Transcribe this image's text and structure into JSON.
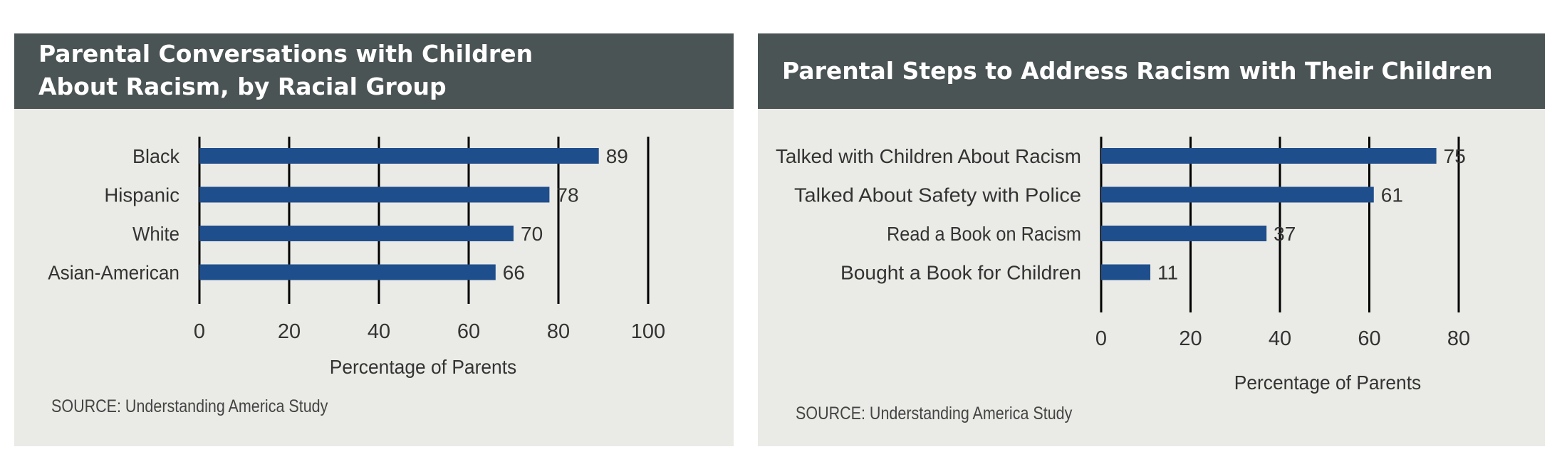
{
  "colors": {
    "bar": "#1f4e8c",
    "header": "#4b5455",
    "panel": "#eaeae6",
    "grid": "#000000",
    "text": "#333333"
  },
  "chart_data": [
    {
      "type": "bar",
      "orientation": "horizontal",
      "title": "Parental Conversations with Children\nAbout Racism, by Racial Group",
      "categories": [
        "Black",
        "Hispanic",
        "White",
        "Asian-American"
      ],
      "values": [
        89,
        78,
        70,
        66
      ],
      "data_labels": [
        "89",
        "78",
        "70",
        "66"
      ],
      "xlabel": "Percentage of Parents",
      "xlim": [
        0,
        100
      ],
      "xticks": [
        0,
        20,
        40,
        60,
        80,
        100
      ],
      "grid": "vertical",
      "source": "SOURCE: Understanding America Study"
    },
    {
      "type": "bar",
      "orientation": "horizontal",
      "title": "Parental Steps to Address Racism with Their Children",
      "categories": [
        "Talked with Children About Racism",
        "Talked About Safety with Police",
        "Read a Book on Racism",
        "Bought a Book for Children"
      ],
      "values": [
        75,
        61,
        37,
        11
      ],
      "data_labels": [
        "75",
        "61",
        "37",
        "11"
      ],
      "xlabel": "Percentage of Parents",
      "xlim": [
        0,
        80
      ],
      "xticks": [
        0,
        20,
        40,
        60,
        80
      ],
      "grid": "vertical",
      "source": "SOURCE: Understanding America Study"
    }
  ]
}
